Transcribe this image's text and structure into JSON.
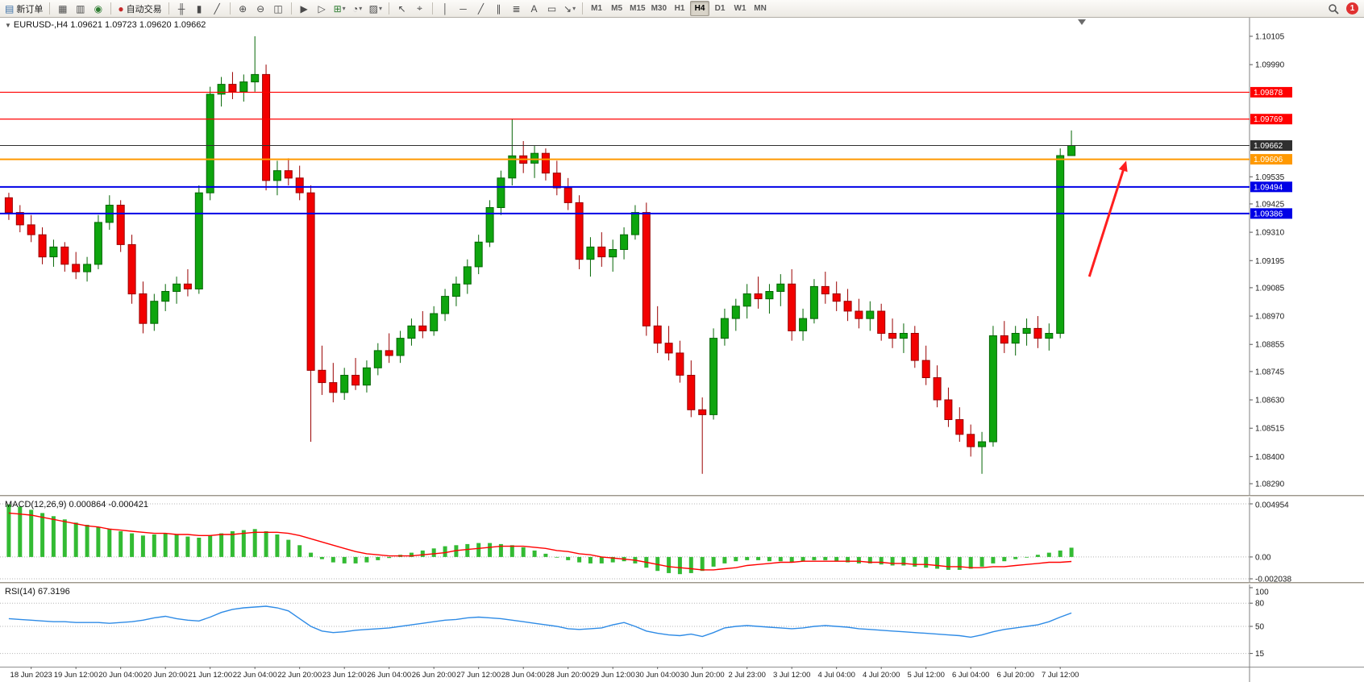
{
  "toolbar": {
    "notification_count": "1",
    "timeframes": [
      "M1",
      "M5",
      "M15",
      "M30",
      "H1",
      "H4",
      "D1",
      "W1",
      "MN"
    ],
    "active_timeframe": "H4",
    "groups": [
      [
        {
          "name": "new-order-button",
          "glyph": "▤",
          "glyph_color": "#3a6ea5",
          "label": "新订单"
        }
      ],
      [
        {
          "name": "charts-window-button",
          "glyph": "▦"
        },
        {
          "name": "profiles-button",
          "glyph": "▥"
        },
        {
          "name": "sound-alerts-button",
          "glyph": "◉",
          "glyph_color": "#2e7d32"
        }
      ],
      [
        {
          "name": "auto-trading-button",
          "glyph": "●",
          "glyph_color": "#c62828",
          "label": "自动交易"
        }
      ],
      [
        {
          "name": "bar-chart-button",
          "glyph": "╫"
        },
        {
          "name": "candlestick-chart-button",
          "glyph": "▮"
        },
        {
          "name": "line-chart-button",
          "glyph": "╱"
        }
      ],
      [
        {
          "name": "zoom-in-button",
          "glyph": "⊕"
        },
        {
          "name": "zoom-out-button",
          "glyph": "⊖"
        },
        {
          "name": "tile-windows-button",
          "glyph": "◫"
        }
      ],
      [
        {
          "name": "auto-scroll-button",
          "glyph": "▶"
        },
        {
          "name": "chart-shift-button",
          "glyph": "▷"
        },
        {
          "name": "new-chart-button",
          "glyph": "⊞",
          "glyph_color": "#2e7d32",
          "dropdown": true
        },
        {
          "name": "periods-button",
          "glyph": "◔",
          "dropdown": true
        },
        {
          "name": "templates-button",
          "glyph": "▨",
          "dropdown": true
        }
      ],
      [
        {
          "name": "cursor-button",
          "glyph": "↖"
        },
        {
          "name": "crosshair-button",
          "glyph": "⌖"
        }
      ],
      [
        {
          "name": "vertical-line-button",
          "glyph": "│"
        },
        {
          "name": "horizontal-line-button",
          "glyph": "─"
        },
        {
          "name": "trendline-button",
          "glyph": "╱"
        },
        {
          "name": "equidistant-channel-button",
          "glyph": "∥"
        },
        {
          "name": "fibonacci-button",
          "glyph": "≣"
        },
        {
          "name": "text-button",
          "glyph": "A"
        },
        {
          "name": "text-label-button",
          "glyph": "▭"
        },
        {
          "name": "arrows-button",
          "glyph": "↘",
          "dropdown": true
        }
      ]
    ]
  },
  "chart": {
    "symbol_label": "EURUSD-,H4 1.09621 1.09723 1.09620 1.09662"
  },
  "colors": {
    "bull": "#0EA50E",
    "bull_stroke": "#056605",
    "bear": "#F20000",
    "bear_stroke": "#9A0000",
    "macd_bars": "#33BB33",
    "macd_signal": "#FF0000",
    "rsi_line": "#2E8BE6",
    "current_price": "#2F2F2F",
    "arrow": "#FF1F1F"
  },
  "chart_data": {
    "type": "candlestick",
    "symbol": "EURUSD-",
    "timeframe": "H4",
    "quote": {
      "open": "1.09621",
      "high": "1.09723",
      "low": "1.09620",
      "close": "1.09662"
    },
    "ylim": [
      1.0829,
      1.10105
    ],
    "price_scale_labels": [
      "1.10105",
      "1.09990",
      "1.09535",
      "1.09425",
      "1.09310",
      "1.09195",
      "1.09085",
      "1.08970",
      "1.08855",
      "1.08745",
      "1.08630",
      "1.08515",
      "1.08400",
      "1.08290"
    ],
    "hlines": [
      {
        "price": 1.09878,
        "label": "1.09878",
        "color": "#FF0000",
        "width": 1.2
      },
      {
        "price": 1.09769,
        "label": "1.09769",
        "color": "#FF0000",
        "width": 1.2
      },
      {
        "price": 1.09662,
        "label": "1.09662",
        "color": "#2F2F2F",
        "width": 1,
        "current": true
      },
      {
        "price": 1.09606,
        "label": "1.09606",
        "color": "#FF9900",
        "width": 2
      },
      {
        "price": 1.09494,
        "label": "1.09494",
        "color": "#0000E6",
        "width": 2
      },
      {
        "price": 1.09386,
        "label": "1.09386",
        "color": "#0000E6",
        "width": 2
      }
    ],
    "ohlc": [
      [
        1.0945,
        1.0947,
        1.0936,
        1.0939
      ],
      [
        1.0939,
        1.0942,
        1.0931,
        1.0934
      ],
      [
        1.0934,
        1.0938,
        1.0927,
        1.093
      ],
      [
        1.093,
        1.0933,
        1.0918,
        1.0921
      ],
      [
        1.0921,
        1.0928,
        1.0917,
        1.0925
      ],
      [
        1.0925,
        1.0927,
        1.0915,
        1.0918
      ],
      [
        1.0918,
        1.0923,
        1.0912,
        1.0915
      ],
      [
        1.0915,
        1.0921,
        1.0911,
        1.0918
      ],
      [
        1.0918,
        1.0938,
        1.0916,
        1.0935
      ],
      [
        1.0935,
        1.0946,
        1.0932,
        1.0942
      ],
      [
        1.0942,
        1.0944,
        1.0923,
        1.0926
      ],
      [
        1.0926,
        1.093,
        1.0902,
        1.0906
      ],
      [
        1.0906,
        1.0911,
        1.089,
        1.0894
      ],
      [
        1.0894,
        1.0906,
        1.0891,
        1.0903
      ],
      [
        1.0903,
        1.091,
        1.0899,
        1.0907
      ],
      [
        1.0907,
        1.0913,
        1.0902,
        1.091
      ],
      [
        1.091,
        1.0916,
        1.0905,
        1.0908
      ],
      [
        1.0908,
        1.095,
        1.0906,
        1.0947
      ],
      [
        1.0947,
        1.099,
        1.0944,
        1.0987
      ],
      [
        1.0987,
        1.0994,
        1.0982,
        1.0991
      ],
      [
        1.0991,
        1.0996,
        1.0985,
        1.0988
      ],
      [
        1.0988,
        1.0995,
        1.0984,
        1.0992
      ],
      [
        1.0992,
        1.10105,
        1.0988,
        1.0995
      ],
      [
        1.0995,
        1.0999,
        1.0948,
        1.0952
      ],
      [
        1.0952,
        1.096,
        1.0946,
        1.0956
      ],
      [
        1.0956,
        1.0961,
        1.095,
        1.0953
      ],
      [
        1.0953,
        1.0958,
        1.0944,
        1.0947
      ],
      [
        1.0947,
        1.095,
        1.0846,
        1.0875
      ],
      [
        1.0875,
        1.0885,
        1.0865,
        1.087
      ],
      [
        1.087,
        1.0878,
        1.0862,
        1.0866
      ],
      [
        1.0866,
        1.0876,
        1.0863,
        1.0873
      ],
      [
        1.0873,
        1.088,
        1.0867,
        1.0869
      ],
      [
        1.0869,
        1.0879,
        1.0866,
        1.0876
      ],
      [
        1.0876,
        1.0886,
        1.0873,
        1.0883
      ],
      [
        1.0883,
        1.089,
        1.0878,
        1.0881
      ],
      [
        1.0881,
        1.0891,
        1.0878,
        1.0888
      ],
      [
        1.0888,
        1.0896,
        1.0885,
        1.0893
      ],
      [
        1.0893,
        1.0899,
        1.0888,
        1.0891
      ],
      [
        1.0891,
        1.0901,
        1.0889,
        1.0898
      ],
      [
        1.0898,
        1.0908,
        1.0895,
        1.0905
      ],
      [
        1.0905,
        1.0913,
        1.0901,
        1.091
      ],
      [
        1.091,
        1.092,
        1.0906,
        1.0917
      ],
      [
        1.0917,
        1.093,
        1.0914,
        1.0927
      ],
      [
        1.0927,
        1.0944,
        1.0925,
        1.0941
      ],
      [
        1.0941,
        1.0956,
        1.0938,
        1.0953
      ],
      [
        1.0953,
        1.0977,
        1.095,
        1.0962
      ],
      [
        1.0962,
        1.0968,
        1.0955,
        1.0959
      ],
      [
        1.0959,
        1.0966,
        1.0953,
        1.0963
      ],
      [
        1.0963,
        1.0965,
        1.0952,
        1.0955
      ],
      [
        1.0955,
        1.096,
        1.0946,
        1.0949
      ],
      [
        1.0949,
        1.0953,
        1.094,
        1.0943
      ],
      [
        1.0943,
        1.0946,
        1.0916,
        1.092
      ],
      [
        1.092,
        1.0929,
        1.0913,
        1.0925
      ],
      [
        1.0925,
        1.0931,
        1.0917,
        1.0921
      ],
      [
        1.0921,
        1.0928,
        1.0915,
        1.0924
      ],
      [
        1.0924,
        1.0933,
        1.092,
        1.093
      ],
      [
        1.093,
        1.0942,
        1.0928,
        1.0939
      ],
      [
        1.0939,
        1.0943,
        1.0889,
        1.0893
      ],
      [
        1.0893,
        1.0901,
        1.0882,
        1.0886
      ],
      [
        1.0886,
        1.0893,
        1.0879,
        1.0882
      ],
      [
        1.0882,
        1.0887,
        1.087,
        1.0873
      ],
      [
        1.0873,
        1.0879,
        1.0856,
        1.0859
      ],
      [
        1.0859,
        1.0864,
        1.0833,
        1.0857
      ],
      [
        1.0857,
        1.0892,
        1.0855,
        1.0888
      ],
      [
        1.0888,
        1.09,
        1.0885,
        1.0896
      ],
      [
        1.0896,
        1.0904,
        1.0891,
        1.0901
      ],
      [
        1.0901,
        1.091,
        1.0896,
        1.0906
      ],
      [
        1.0906,
        1.0913,
        1.09,
        1.0904
      ],
      [
        1.0904,
        1.091,
        1.0898,
        1.0907
      ],
      [
        1.0907,
        1.0914,
        1.0901,
        1.091
      ],
      [
        1.091,
        1.0916,
        1.0887,
        1.0891
      ],
      [
        1.0891,
        1.09,
        1.0887,
        1.0896
      ],
      [
        1.0896,
        1.0912,
        1.0894,
        1.0909
      ],
      [
        1.0909,
        1.0915,
        1.0902,
        1.0906
      ],
      [
        1.0906,
        1.0911,
        1.0899,
        1.0903
      ],
      [
        1.0903,
        1.0908,
        1.0895,
        1.0899
      ],
      [
        1.0899,
        1.0904,
        1.0892,
        1.0896
      ],
      [
        1.0896,
        1.0903,
        1.0891,
        1.0899
      ],
      [
        1.0899,
        1.0902,
        1.0887,
        1.089
      ],
      [
        1.089,
        1.0896,
        1.0884,
        1.0888
      ],
      [
        1.0888,
        1.0894,
        1.0882,
        1.089
      ],
      [
        1.089,
        1.0893,
        1.0876,
        1.0879
      ],
      [
        1.0879,
        1.0885,
        1.0869,
        1.0872
      ],
      [
        1.0872,
        1.0877,
        1.086,
        1.0863
      ],
      [
        1.0863,
        1.0868,
        1.0852,
        1.0855
      ],
      [
        1.0855,
        1.086,
        1.0846,
        1.0849
      ],
      [
        1.0849,
        1.0853,
        1.084,
        1.0844
      ],
      [
        1.0844,
        1.085,
        1.0833,
        1.0846
      ],
      [
        1.0846,
        1.0893,
        1.0844,
        1.0889
      ],
      [
        1.0889,
        1.0895,
        1.0882,
        1.0886
      ],
      [
        1.0886,
        1.0893,
        1.0881,
        1.089
      ],
      [
        1.089,
        1.0896,
        1.0885,
        1.0892
      ],
      [
        1.0892,
        1.0897,
        1.0884,
        1.0888
      ],
      [
        1.0888,
        1.0894,
        1.0883,
        1.089
      ],
      [
        1.089,
        1.0965,
        1.0888,
        1.09621
      ],
      [
        1.09621,
        1.09723,
        1.0962,
        1.09662
      ]
    ],
    "time_labels": {
      "start_index": 2,
      "step": 4,
      "labels": [
        "18 Jun 2023",
        "19 Jun 12:00",
        "20 Jun 04:00",
        "20 Jun 20:00",
        "21 Jun 12:00",
        "22 Jun 04:00",
        "22 Jun 20:00",
        "23 Jun 12:00",
        "26 Jun 04:00",
        "26 Jun 20:00",
        "27 Jun 12:00",
        "28 Jun 04:00",
        "28 Jun 20:00",
        "29 Jun 12:00",
        "30 Jun 04:00",
        "30 Jun 20:00",
        "2 Jul 23:00",
        "3 Jul 12:00",
        "4 Jul 04:00",
        "4 Jul 20:00",
        "5 Jul 12:00",
        "6 Jul 04:00",
        "6 Jul 20:00",
        "7 Jul 12:00"
      ]
    },
    "annotations": [
      {
        "type": "arrow",
        "name": "up-trend-arrow",
        "from_index": 96.6,
        "from_price": 1.0913,
        "to_index": 99.9,
        "to_price": 1.096,
        "color": "#FF1F1F",
        "width": 3
      }
    ],
    "indicators": {
      "macd": {
        "display": "MACD(12,26,9) 0.000864 -0.000421",
        "main_value": 0.000864,
        "signal_value": -0.000421,
        "scale_labels": [
          "0.004954",
          "0.00",
          "-0.002038"
        ],
        "scale_values": [
          0.004954,
          0,
          -0.002038
        ],
        "histogram": [
          0.0049,
          0.0047,
          0.0044,
          0.0041,
          0.0038,
          0.0035,
          0.0032,
          0.003,
          0.0028,
          0.0026,
          0.0024,
          0.0022,
          0.002,
          0.0021,
          0.0022,
          0.0021,
          0.0019,
          0.0018,
          0.002,
          0.0022,
          0.0024,
          0.0025,
          0.0026,
          0.0024,
          0.0021,
          0.0016,
          0.0011,
          0.0004,
          -0.0002,
          -0.0005,
          -0.0006,
          -0.0006,
          -0.0005,
          -0.0003,
          -0.0001,
          0.0002,
          0.0004,
          0.0006,
          0.0008,
          0.001,
          0.0011,
          0.0012,
          0.0013,
          0.0013,
          0.0012,
          0.0011,
          0.0009,
          0.0006,
          0.0003,
          0.0,
          -0.0003,
          -0.0005,
          -0.0006,
          -0.0006,
          -0.0005,
          -0.0004,
          -0.0006,
          -0.001,
          -0.0013,
          -0.0015,
          -0.0016,
          -0.0015,
          -0.0013,
          -0.0009,
          -0.0006,
          -0.0004,
          -0.0003,
          -0.0003,
          -0.0004,
          -0.0004,
          -0.0005,
          -0.0004,
          -0.0003,
          -0.0003,
          -0.0004,
          -0.0005,
          -0.0006,
          -0.0006,
          -0.0007,
          -0.0008,
          -0.0008,
          -0.0009,
          -0.001,
          -0.0011,
          -0.0012,
          -0.0012,
          -0.0011,
          -0.0009,
          -0.0006,
          -0.0004,
          -0.0002,
          0.0,
          0.0002,
          0.0004,
          0.0006,
          0.000864
        ],
        "signal": [
          0.0041,
          0.004,
          0.0039,
          0.0037,
          0.0035,
          0.0033,
          0.0031,
          0.0029,
          0.0028,
          0.0026,
          0.0025,
          0.0024,
          0.0023,
          0.0022,
          0.0022,
          0.0021,
          0.0021,
          0.002,
          0.002,
          0.0021,
          0.0021,
          0.0022,
          0.0023,
          0.0023,
          0.0023,
          0.0022,
          0.002,
          0.0017,
          0.0014,
          0.0011,
          0.0008,
          0.0005,
          0.0003,
          0.0002,
          0.0001,
          0.0001,
          0.0001,
          0.0002,
          0.0003,
          0.0004,
          0.0006,
          0.0007,
          0.0008,
          0.0009,
          0.001,
          0.001,
          0.001,
          0.0009,
          0.0008,
          0.0006,
          0.0005,
          0.0003,
          0.0002,
          0.0,
          -0.0001,
          -0.0002,
          -0.0003,
          -0.0005,
          -0.0007,
          -0.0009,
          -0.001,
          -0.0011,
          -0.0012,
          -0.0012,
          -0.0011,
          -0.001,
          -0.0008,
          -0.0007,
          -0.0006,
          -0.0005,
          -0.0005,
          -0.0004,
          -0.0004,
          -0.0004,
          -0.0004,
          -0.0004,
          -0.0004,
          -0.0005,
          -0.0005,
          -0.0006,
          -0.0006,
          -0.0007,
          -0.0007,
          -0.0008,
          -0.0009,
          -0.0009,
          -0.001,
          -0.001,
          -0.0009,
          -0.0009,
          -0.0008,
          -0.0007,
          -0.0006,
          -0.0005,
          -0.0005,
          -0.000421
        ]
      },
      "rsi": {
        "display": "RSI(14) 67.3196",
        "value": 67.3196,
        "scale_labels": [
          "100",
          "80",
          "50",
          "15"
        ],
        "scale_values": [
          100,
          80,
          50,
          15
        ],
        "levels": [
          80,
          50,
          15
        ],
        "values": [
          60,
          59,
          58,
          57,
          56,
          56,
          55,
          55,
          55,
          54,
          55,
          56,
          58,
          61,
          63,
          60,
          58,
          57,
          62,
          68,
          72,
          74,
          75,
          76,
          74,
          70,
          60,
          50,
          44,
          42,
          43,
          45,
          46,
          47,
          48,
          50,
          52,
          54,
          56,
          58,
          59,
          61,
          62,
          61,
          60,
          58,
          56,
          54,
          52,
          50,
          47,
          46,
          47,
          48,
          52,
          55,
          50,
          44,
          41,
          39,
          38,
          40,
          37,
          42,
          48,
          50,
          51,
          50,
          49,
          48,
          47,
          48,
          50,
          51,
          50,
          49,
          47,
          46,
          45,
          44,
          43,
          42,
          41,
          40,
          39,
          38,
          36,
          39,
          43,
          46,
          48,
          50,
          52,
          56,
          62,
          67.3
        ]
      }
    }
  }
}
